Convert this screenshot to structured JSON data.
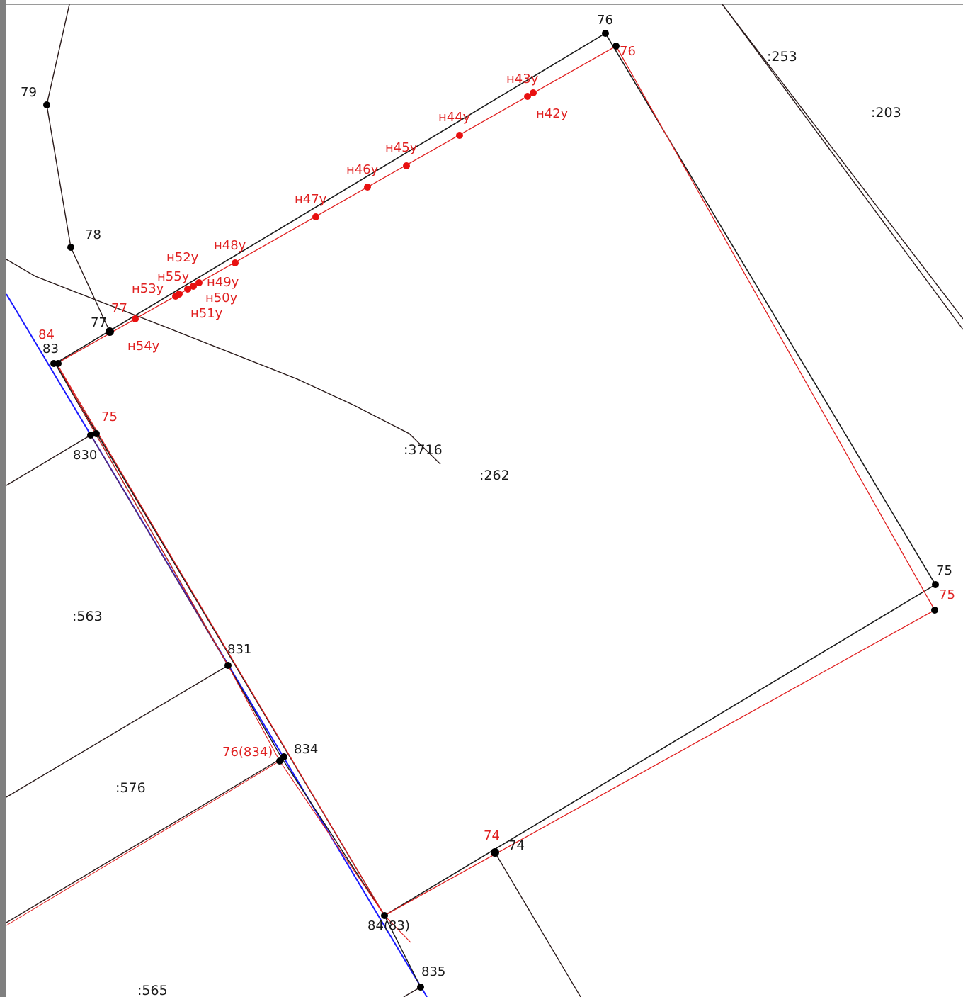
{
  "colors": {
    "existing_boundary": "#1a1a1a",
    "new_boundary": "#e02020",
    "highlight_boundary": "#1a1aff",
    "existing_point": "#000000",
    "new_point": "#e81010",
    "parcel_label": "#1a1a1a",
    "new_label": "#e02020"
  },
  "parcel_labels": [
    ":253",
    ":203",
    ":3716",
    ":262",
    ":563",
    ":576",
    ":565"
  ],
  "existing_point_labels": [
    "76",
    "79",
    "78",
    "77",
    "83",
    "830",
    "831",
    "834",
    "84(83)",
    "835",
    "74",
    "75"
  ],
  "new_point_labels": [
    "76",
    "н43у",
    "н42у",
    "н44у",
    "н45у",
    "н46у",
    "н47у",
    "н48у",
    "н52у",
    "н55у",
    "н53у",
    "н49у",
    "н50у",
    "н51у",
    "77",
    "н54у",
    "84",
    "75",
    "76(834)",
    "74",
    "75"
  ]
}
